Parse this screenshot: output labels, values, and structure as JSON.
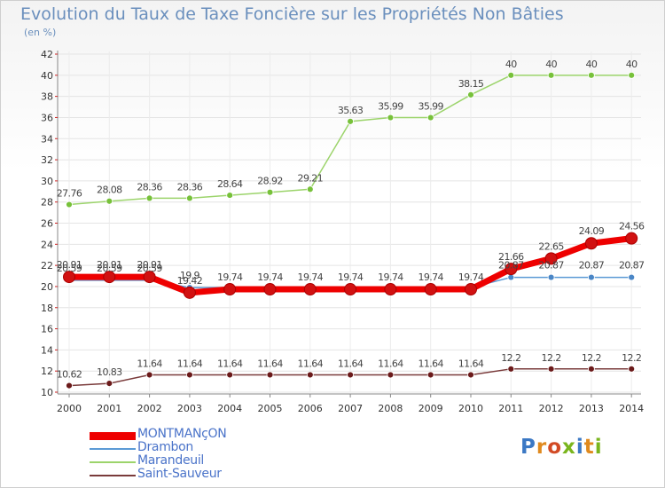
{
  "title": "Evolution du Taux de Taxe Foncière sur les Propriétés Non Bâties",
  "subtitle": "(en %)",
  "logo": {
    "text": "Proxiti"
  },
  "chart_data": {
    "type": "line",
    "x": [
      "2000",
      "2001",
      "2002",
      "2003",
      "2004",
      "2005",
      "2006",
      "2007",
      "2008",
      "2009",
      "2010",
      "2011",
      "2012",
      "2013",
      "2014"
    ],
    "ylim": [
      10,
      42
    ],
    "yticks": [
      10,
      12,
      14,
      16,
      18,
      20,
      22,
      24,
      26,
      28,
      30,
      32,
      34,
      36,
      38,
      40,
      42
    ],
    "grid": true,
    "legend_position": "bottom-left",
    "series": [
      {
        "name": "MONTMANçON",
        "color": "#ee0000",
        "point_color": "#d11111",
        "values": [
          20.91,
          20.91,
          20.91,
          19.42,
          19.74,
          19.74,
          19.74,
          19.74,
          19.74,
          19.74,
          19.74,
          21.66,
          22.65,
          24.09,
          24.56
        ],
        "labels": [
          "20.91",
          "20.91",
          "20.91",
          "19.42",
          "19.74",
          "19.74",
          "19.74",
          "19.74",
          "19.74",
          "19.74",
          "19.74",
          "21.66",
          "22.65",
          "24.09",
          "24.56"
        ]
      },
      {
        "name": "Drambon",
        "color": "#5b9ad5",
        "point_color": "#4a86c6",
        "values": [
          20.59,
          20.59,
          20.59,
          19.9,
          19.9,
          19.9,
          19.9,
          19.9,
          19.9,
          19.9,
          19.9,
          20.87,
          20.87,
          20.87,
          20.87
        ],
        "labels": [
          "20.59",
          "20.59",
          "20.59",
          "19.9",
          "",
          "",
          "",
          "",
          "",
          "",
          "",
          "20.87",
          "20.87",
          "20.87",
          "20.87"
        ]
      },
      {
        "name": "Marandeuil",
        "color": "#9cd46b",
        "point_color": "#77c13a",
        "values": [
          27.76,
          28.08,
          28.36,
          28.36,
          28.64,
          28.92,
          29.21,
          35.63,
          35.99,
          35.99,
          38.15,
          40,
          40,
          40,
          40
        ],
        "labels": [
          "27.76",
          "28.08",
          "28.36",
          "28.36",
          "28.64",
          "28.92",
          "29.21",
          "35.63",
          "35.99",
          "35.99",
          "38.15",
          "40",
          "40",
          "40",
          "40"
        ]
      },
      {
        "name": "Saint-Sauveur",
        "color": "#7a3b3b",
        "point_color": "#6b1a1a",
        "values": [
          10.62,
          10.83,
          11.64,
          11.64,
          11.64,
          11.64,
          11.64,
          11.64,
          11.64,
          11.64,
          11.64,
          12.2,
          12.2,
          12.2,
          12.2
        ],
        "labels": [
          "10.62",
          "10.83",
          "11.64",
          "11.64",
          "11.64",
          "11.64",
          "11.64",
          "11.64",
          "11.64",
          "11.64",
          "11.64",
          "12.2",
          "12.2",
          "12.2",
          "12.2"
        ]
      }
    ]
  }
}
